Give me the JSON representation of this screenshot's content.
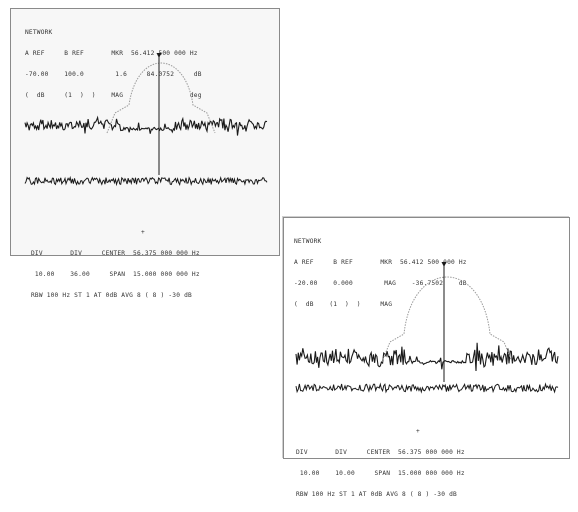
{
  "screen_a": {
    "header": [
      "NETWORK",
      "A REF     B REF       MKR  56.412 500 000 Hz",
      "-70.00    100.0        1.6     84.0752     dB",
      "(  dB     (1  )  )    MAG                 deg"
    ],
    "marker_label": "*",
    "footer": [
      "DIV       DIV     CENTER  56.375 000 000 Hz",
      " 10.00    36.00     SPAN  15.000 000 000 Hz",
      "RBW 100 Hz ST 1 AT 0dB AVG 8 ( 8 ) -30 dB"
    ],
    "center_mark": "+"
  },
  "screen_b": {
    "header": [
      "NETWORK",
      "A REF     B REF       MKR  56.412 500 000 Hz",
      "-20.00    0.000        MAG    -36.7502    dB",
      "(  dB    (1  )  )     MAG",
      ""
    ],
    "footer": [
      "DIV       DIV     CENTER  56.375 000 000 Hz",
      " 10.00    10.00     SPAN  15.000 000 000 Hz",
      "RBW 100 Hz ST 1 AT 0dB AVG 8 ( 8 ) -30 dB"
    ],
    "center_mark": "+"
  },
  "colors": {
    "trace": "#1a1a1a",
    "passband": "#9a9a9a",
    "frame": "#8a8a8a"
  }
}
